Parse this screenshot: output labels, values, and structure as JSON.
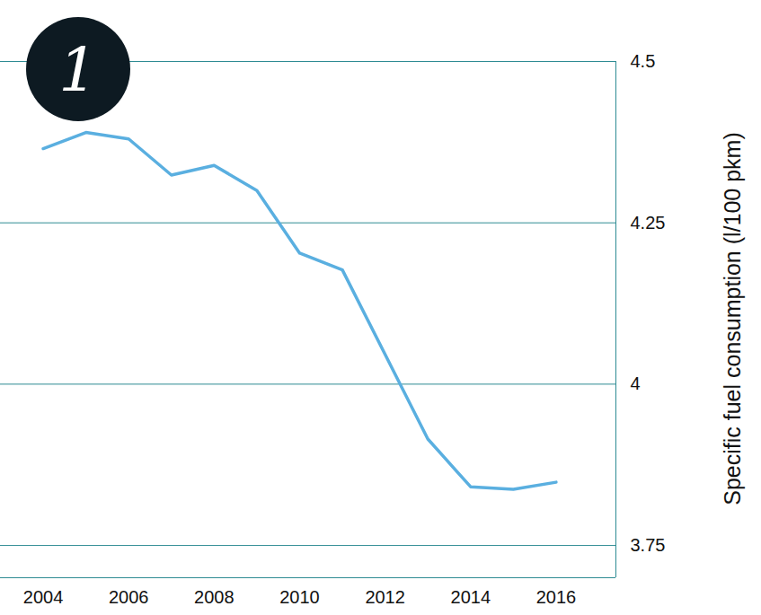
{
  "chart_data": {
    "type": "line",
    "x": [
      2004,
      2005,
      2006,
      2007,
      2008,
      2009,
      2010,
      2011,
      2012,
      2013,
      2014,
      2015,
      2016
    ],
    "values": [
      4.365,
      4.39,
      4.38,
      4.324,
      4.339,
      4.3,
      4.203,
      4.177,
      4.046,
      3.915,
      3.841,
      3.837,
      3.848
    ],
    "color": "#5aafe0",
    "xlim": [
      2003,
      2017.4
    ],
    "xticks": [
      2004,
      2006,
      2008,
      2010,
      2012,
      2014,
      2016
    ],
    "ylim": [
      3.7,
      4.5
    ],
    "yticks": [
      3.75,
      4,
      4.25,
      4.5
    ],
    "y_label": "Specific fuel consumption (l/100 pkm)",
    "annotations": [
      "1"
    ],
    "grid": true
  }
}
